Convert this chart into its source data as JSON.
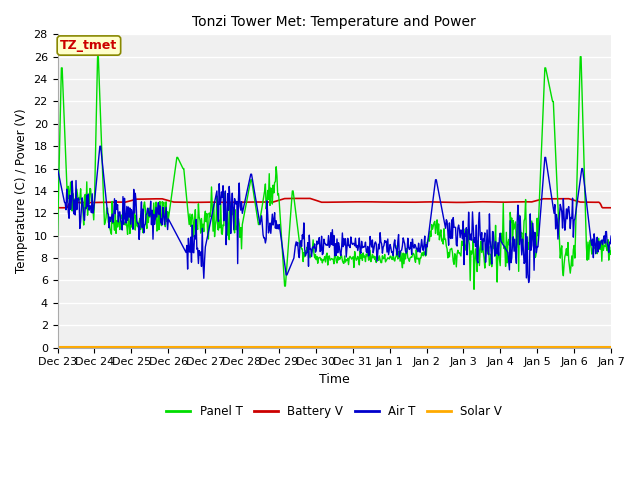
{
  "title": "Tonzi Tower Met: Temperature and Power",
  "xlabel": "Time",
  "ylabel": "Temperature (C) / Power (V)",
  "ylim": [
    0,
    28
  ],
  "yticks": [
    0,
    2,
    4,
    6,
    8,
    10,
    12,
    14,
    16,
    18,
    20,
    22,
    24,
    26,
    28
  ],
  "plot_bg_color": "#f0f0f0",
  "fig_bg_color": "#ffffff",
  "grid_color": "#ffffff",
  "annotation_text": "TZ_tmet",
  "annotation_bg": "#ffffcc",
  "annotation_border": "#888800",
  "annotation_text_color": "#cc0000",
  "x_tick_labels": [
    "Dec 23",
    "Dec 24",
    "Dec 25",
    "Dec 26",
    "Dec 27",
    "Dec 28",
    "Dec 29",
    "Dec 30",
    "Dec 31",
    "Jan 1",
    "Jan 2",
    "Jan 3",
    "Jan 4",
    "Jan 5",
    "Jan 6",
    "Jan 7"
  ],
  "series": {
    "panel_t": {
      "color": "#00dd00",
      "label": "Panel T",
      "linewidth": 1.0
    },
    "battery_v": {
      "color": "#cc0000",
      "label": "Battery V",
      "linewidth": 1.2
    },
    "air_t": {
      "color": "#0000cc",
      "label": "Air T",
      "linewidth": 1.0
    },
    "solar_v": {
      "color": "#ffaa00",
      "label": "Solar V",
      "linewidth": 1.5
    }
  }
}
